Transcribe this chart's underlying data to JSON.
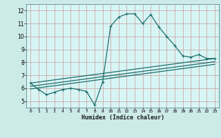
{
  "xlabel": "Humidex (Indice chaleur)",
  "bg_color": "#cceae8",
  "plot_bg_color": "#d8f5f5",
  "grid_color": "#c8a8a8",
  "line_color": "#1a6e6a",
  "xlim": [
    -0.5,
    23.5
  ],
  "ylim": [
    4.5,
    12.5
  ],
  "xticks": [
    0,
    1,
    2,
    3,
    4,
    5,
    6,
    7,
    8,
    9,
    10,
    11,
    12,
    13,
    14,
    15,
    16,
    17,
    18,
    19,
    20,
    21,
    22,
    23
  ],
  "yticks": [
    5,
    6,
    7,
    8,
    9,
    10,
    11,
    12
  ],
  "line1_x": [
    0,
    1,
    2,
    3,
    4,
    5,
    6,
    7,
    8,
    9,
    10,
    11,
    12,
    13,
    14,
    15,
    16,
    17,
    18,
    19,
    20,
    21,
    22,
    23
  ],
  "line1_y": [
    6.4,
    5.9,
    5.5,
    5.7,
    5.9,
    6.0,
    5.9,
    5.75,
    4.7,
    6.5,
    10.8,
    11.5,
    11.75,
    11.75,
    11.0,
    11.7,
    10.75,
    10.0,
    9.3,
    8.5,
    8.4,
    8.6,
    8.3,
    8.3
  ],
  "line2_x": [
    0,
    23
  ],
  "line2_y": [
    6.4,
    8.3
  ],
  "line3_x": [
    0,
    23
  ],
  "line3_y": [
    6.15,
    8.05
  ],
  "line4_x": [
    0,
    23
  ],
  "line4_y": [
    5.95,
    7.85
  ]
}
